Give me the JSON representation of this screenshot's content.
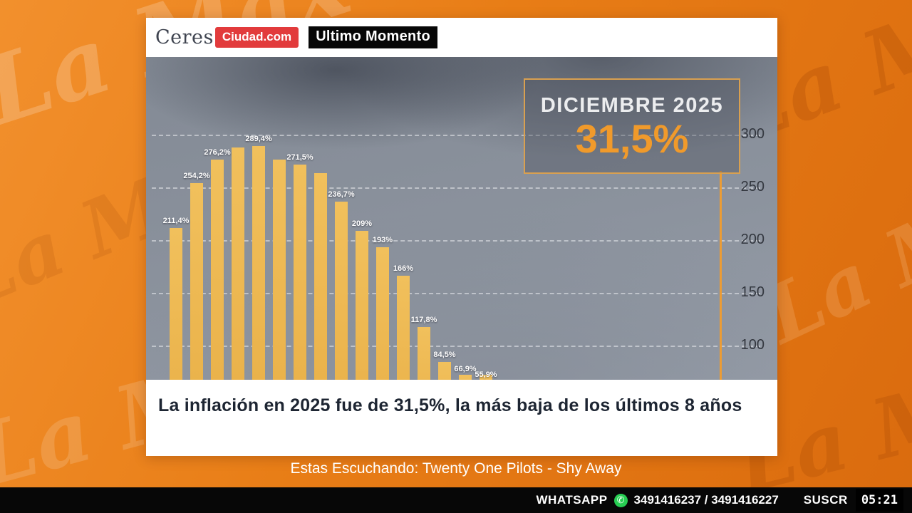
{
  "app": {
    "watermark": "La Max"
  },
  "header": {
    "logo_primary": "Ceres",
    "logo_secondary": "Ciudad.com",
    "badge": "Ultimo Momento"
  },
  "headline": {
    "text": "La inflación en 2025 fue de 31,5%, la más baja de los últimos 8 años"
  },
  "now_playing": {
    "text": "Estas Escuchando: Twenty One Pilots - Shy Away"
  },
  "bottom_bar": {
    "whatsapp_label": "WHATSAPP",
    "numbers": "3491416237 / 3491416227",
    "subscribe_label": "SUSCR",
    "timestamp": "05:21"
  },
  "colors": {
    "background_orange": "#E87D16",
    "bar_gold": "#EBB44F",
    "brand_red": "#E23B3C",
    "highlight_orange": "#F09A2B",
    "whatsapp_green": "#27CE53"
  },
  "chart_data": {
    "type": "bar",
    "title": "",
    "xlabel": "",
    "ylabel": "",
    "unit": "%",
    "grid": "dashed",
    "y_ticks": [
      300,
      250,
      200,
      150,
      100
    ],
    "ylim": [
      0,
      320
    ],
    "bars": [
      {
        "label": "211,4%",
        "value": 211.4
      },
      {
        "label": "254,2%",
        "value": 254.2
      },
      {
        "label": "276,2%",
        "value": 276.2
      },
      {
        "label": "",
        "value": 287.9
      },
      {
        "label": "289,4%",
        "value": 289.4
      },
      {
        "label": "",
        "value": 276.4
      },
      {
        "label": "271,5%",
        "value": 271.5
      },
      {
        "label": "",
        "value": 263.4
      },
      {
        "label": "236,7%",
        "value": 236.7
      },
      {
        "label": "209%",
        "value": 209
      },
      {
        "label": "193%",
        "value": 193
      },
      {
        "label": "166%",
        "value": 166
      },
      {
        "label": "117,8%",
        "value": 117.8
      },
      {
        "label": "84,5%",
        "value": 84.5
      },
      {
        "label": "66,9%",
        "value": 66.9
      },
      {
        "label": "55,9%",
        "value": 55.9
      }
    ],
    "highlight": {
      "label": "DICIEMBRE 2025",
      "value_label": "31,5%",
      "value": 31.5
    }
  }
}
